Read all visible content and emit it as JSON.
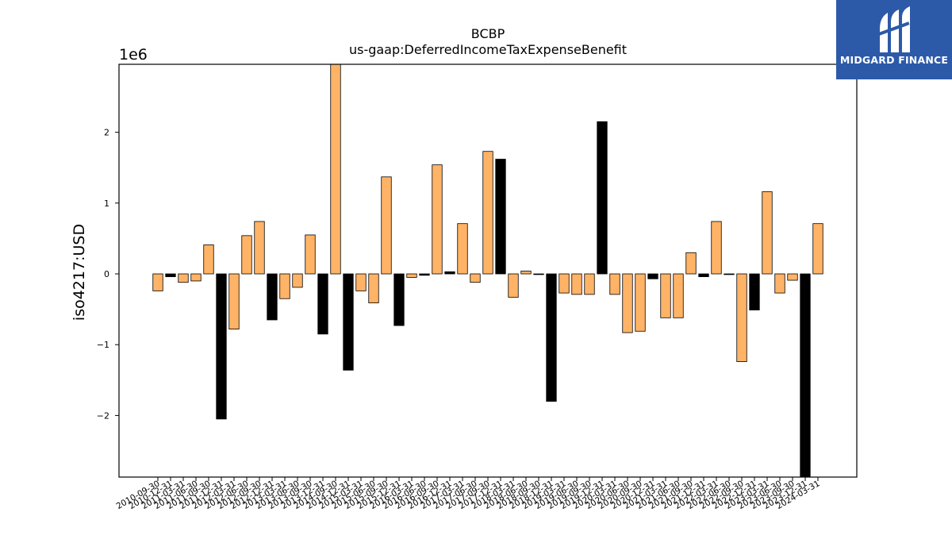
{
  "brand": {
    "name": "MIDGARD FINANCE",
    "bg_color": "#2c5aa8",
    "mark_icon": "midgard-m-logo-icon"
  },
  "chart_data": {
    "type": "bar",
    "title": "BCBP",
    "subtitle": "us-gaap:DeferredIncomeTaxExpenseBenefit",
    "ylabel": "iso4217:USD",
    "xlabel": "",
    "scale_label": "1e6",
    "ylim": [
      -2.87,
      2.96
    ],
    "yticks": [
      -2,
      -1,
      0,
      1,
      2
    ],
    "ytick_labels": [
      "−2",
      "−1",
      "0",
      "1",
      "2"
    ],
    "colors": {
      "orange": "#ffb366",
      "black": "#000000",
      "edge": "#000000"
    },
    "grid": false,
    "legend": "none",
    "categories": [
      "2010-09-30",
      "2010-12-31",
      "2011-03-31",
      "2011-06-30",
      "2011-09-30",
      "2011-12-31",
      "2012-03-31",
      "2012-06-30",
      "2012-09-30",
      "2012-12-31",
      "2013-03-31",
      "2013-06-30",
      "2013-09-30",
      "2013-12-31",
      "2014-09-30",
      "2014-12-31",
      "2015-03-31",
      "2015-06-30",
      "2015-09-30",
      "2015-12-31",
      "2016-03-31",
      "2016-06-30",
      "2016-09-30",
      "2016-12-31",
      "2017-03-31",
      "2017-06-30",
      "2017-09-30",
      "2017-12-31",
      "2018-03-31",
      "2018-06-30",
      "2018-09-30",
      "2018-12-31",
      "2019-03-31",
      "2019-06-30",
      "2019-09-30",
      "2019-12-31",
      "2020-03-31",
      "2020-06-30",
      "2020-09-30",
      "2020-12-31",
      "2021-03-31",
      "2021-06-30",
      "2021-09-30",
      "2021-12-31",
      "2022-03-31",
      "2022-06-30",
      "2022-09-30",
      "2022-12-31",
      "2023-03-31",
      "2023-06-30",
      "2023-09-30",
      "2023-12-31",
      "2024-03-31"
    ],
    "values": [
      -0.24,
      -0.04,
      -0.12,
      -0.1,
      0.41,
      -2.05,
      -0.78,
      0.54,
      0.74,
      -0.65,
      -0.35,
      -0.19,
      0.55,
      -0.85,
      3.1,
      -1.36,
      -0.24,
      -0.41,
      1.37,
      -0.73,
      -0.05,
      -0.02,
      1.54,
      0.03,
      0.71,
      -0.12,
      1.73,
      1.62,
      -0.33,
      0.04,
      -0.01,
      -1.8,
      -0.27,
      -0.29,
      -0.29,
      2.15,
      -0.29,
      -0.83,
      -0.81,
      -0.07,
      -0.62,
      -0.62,
      0.3,
      -0.04,
      0.74,
      -0.01,
      -1.24,
      -0.51,
      1.16,
      -0.27,
      -0.09,
      -3.1,
      0.71
    ],
    "bar_colors": [
      "orange",
      "black",
      "orange",
      "orange",
      "orange",
      "black",
      "orange",
      "orange",
      "orange",
      "black",
      "orange",
      "orange",
      "orange",
      "black",
      "orange",
      "black",
      "orange",
      "orange",
      "orange",
      "black",
      "orange",
      "black",
      "orange",
      "black",
      "orange",
      "orange",
      "orange",
      "black",
      "orange",
      "orange",
      "black",
      "black",
      "orange",
      "orange",
      "orange",
      "black",
      "orange",
      "orange",
      "orange",
      "black",
      "orange",
      "orange",
      "orange",
      "black",
      "orange",
      "black",
      "orange",
      "black",
      "orange",
      "orange",
      "orange",
      "black",
      "orange"
    ]
  }
}
